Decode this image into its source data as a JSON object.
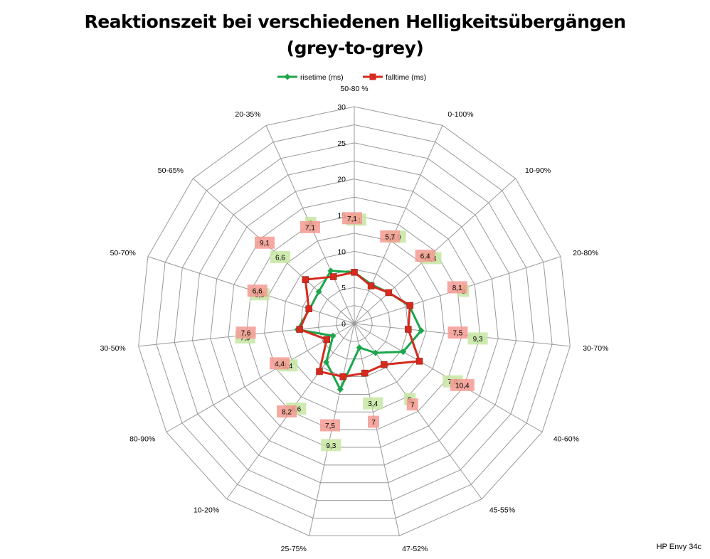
{
  "title": {
    "line1": "Reaktionszeit bei verschiedenen Helligkeitsübergängen",
    "line2": "(grey-to-grey)"
  },
  "footer": "HP Envy 34c",
  "colors": {
    "rise": "#1aa64a",
    "fall": "#d42b1e",
    "rise_label_bg": "#c6e6a2",
    "fall_label_bg": "#f39a92",
    "grid": "#999999"
  },
  "chart_data": {
    "type": "radar",
    "title": "Reaktionszeit bei verschiedenen Helligkeitsübergängen (grey-to-grey)",
    "categories": [
      "50-80 %",
      "0-100%",
      "10-90%",
      "20-80%",
      "30-70%",
      "40-60%",
      "45-55%",
      "47-52%",
      "25-75%",
      "10-20%",
      "80-90%",
      "30-50%",
      "50-70%",
      "50-65%",
      "20-35%"
    ],
    "rlim": [
      0,
      30
    ],
    "ticks": [
      0,
      5,
      10,
      15,
      20,
      25,
      30
    ],
    "grid": true,
    "legend_position": "top",
    "series": [
      {
        "name": "risetime (ms)",
        "values": [
          7.1,
          5.9,
          6.4,
          8,
          9.3,
          7.8,
          5,
          3.4,
          9.3,
          6.6,
          3.4,
          7.9,
          6.5,
          6.6,
          8
        ],
        "labels": [
          "7,1",
          "5,9",
          "6,4",
          "8",
          "9,3",
          "7,8",
          "5",
          "3,4",
          "9,3",
          "6,6",
          "3,4",
          "7,9",
          "6,5",
          "6,6",
          "8"
        ]
      },
      {
        "name": "falltime (ms)",
        "values": [
          7.1,
          5.7,
          6.4,
          8.1,
          7.5,
          10.4,
          7,
          7,
          7.5,
          8.2,
          4.4,
          7.6,
          6.6,
          9.1,
          7.1
        ],
        "labels": [
          "7,1",
          "5,7",
          "6,4",
          "8,1",
          "7,5",
          "10,4",
          "7",
          "7",
          "7,5",
          "8,2",
          "4,4",
          "7,6",
          "6,6",
          "9,1",
          "7,1"
        ]
      }
    ]
  }
}
